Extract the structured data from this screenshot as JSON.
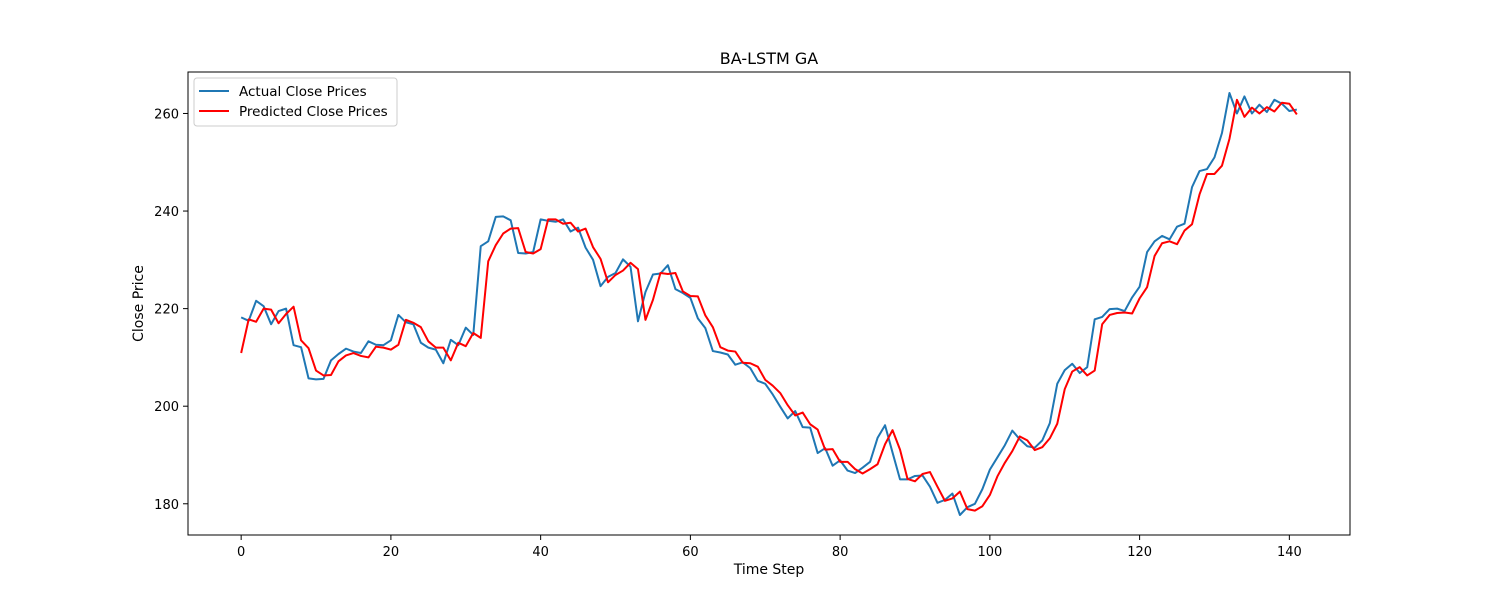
{
  "chart_data": {
    "type": "line",
    "title": "BA-LSTM GA",
    "xlabel": "Time Step",
    "ylabel": "Close Price",
    "xlim": [
      -7.1,
      148.1
    ],
    "ylim": [
      173.6,
      268.5
    ],
    "x_ticks": [
      0,
      20,
      40,
      60,
      80,
      100,
      120,
      140
    ],
    "y_ticks": [
      180,
      200,
      220,
      240,
      260
    ],
    "grid": false,
    "legend_position": "top-left",
    "series": [
      {
        "name": "Actual Close Prices",
        "color": "#1f77b4",
        "values": [
          218.2,
          217.5,
          221.6,
          220.5,
          216.8,
          219.5,
          220.0,
          212.5,
          212.1,
          205.7,
          205.5,
          205.6,
          209.4,
          210.7,
          211.8,
          211.2,
          210.9,
          213.3,
          212.6,
          212.5,
          213.5,
          218.7,
          217.2,
          216.8,
          213.0,
          212.0,
          211.6,
          208.8,
          213.6,
          212.5,
          216.1,
          214.6,
          232.8,
          233.8,
          238.8,
          238.9,
          238.1,
          231.4,
          231.3,
          231.6,
          238.3,
          238.0,
          237.8,
          238.3,
          235.8,
          236.6,
          232.5,
          230.0,
          224.6,
          226.5,
          227.3,
          230.1,
          228.6,
          217.4,
          223.4,
          227.0,
          227.2,
          228.9,
          224.0,
          223.2,
          222.2,
          218.0,
          216.0,
          211.3,
          211.0,
          210.6,
          208.5,
          209.0,
          207.8,
          205.2,
          204.6,
          202.4,
          199.9,
          197.5,
          199.0,
          195.7,
          195.6,
          190.4,
          191.4,
          187.8,
          188.9,
          186.8,
          186.3,
          187.4,
          188.6,
          193.5,
          196.1,
          190.5,
          185.0,
          185.0,
          185.7,
          185.8,
          183.5,
          180.2,
          180.8,
          182.1,
          177.7,
          179.3,
          180.0,
          183.0,
          187.0,
          189.5,
          192.0,
          195.0,
          193.2,
          191.8,
          191.5,
          193.0,
          196.5,
          204.6,
          207.4,
          208.7,
          206.8,
          208.0,
          217.8,
          218.3,
          219.9,
          220.0,
          219.5,
          222.3,
          224.5,
          231.6,
          233.8,
          234.9,
          234.2,
          236.8,
          237.4,
          244.9,
          248.2,
          248.6,
          251.0,
          256.0,
          264.2,
          260.0,
          263.5,
          260.0,
          261.8,
          260.3,
          262.8,
          262.0,
          260.5,
          260.8
        ]
      },
      {
        "name": "Predicted Close Prices",
        "color": "#ff0000",
        "values": [
          210.9,
          217.8,
          217.3,
          220.0,
          219.8,
          217.0,
          218.9,
          220.4,
          213.5,
          211.9,
          207.3,
          206.3,
          206.4,
          209.2,
          210.4,
          210.9,
          210.3,
          210.0,
          212.2,
          212.0,
          211.6,
          212.6,
          217.7,
          217.1,
          216.2,
          213.3,
          212.0,
          212.0,
          209.4,
          213.0,
          212.3,
          215.0,
          214.0,
          229.7,
          233.0,
          235.4,
          236.4,
          236.5,
          231.6,
          231.3,
          232.2,
          238.3,
          238.3,
          237.4,
          237.6,
          235.8,
          236.4,
          232.6,
          230.2,
          225.4,
          226.9,
          227.8,
          229.4,
          228.1,
          217.7,
          221.8,
          227.3,
          227.1,
          227.3,
          223.5,
          222.6,
          222.5,
          218.6,
          216.2,
          212.1,
          211.4,
          211.2,
          208.9,
          208.8,
          208.1,
          205.4,
          204.2,
          202.7,
          200.2,
          198.1,
          198.7,
          196.3,
          195.2,
          191.1,
          191.2,
          188.6,
          188.6,
          187.1,
          186.2,
          187.1,
          188.1,
          192.2,
          195.1,
          191.1,
          185.1,
          184.6,
          186.1,
          186.5,
          183.5,
          180.6,
          181.1,
          182.5,
          178.9,
          178.6,
          179.5,
          181.8,
          185.6,
          188.4,
          190.8,
          193.8,
          193.0,
          191.0,
          191.6,
          193.4,
          196.4,
          203.5,
          207.1,
          208.0,
          206.3,
          207.3,
          216.8,
          218.7,
          219.1,
          219.2,
          219.0,
          222.1,
          224.4,
          230.8,
          233.4,
          233.8,
          233.2,
          236.0,
          237.3,
          243.4,
          247.6,
          247.6,
          249.3,
          254.8,
          262.8,
          259.3,
          261.2,
          260.0,
          261.3,
          260.4,
          262.2,
          262.0,
          259.8
        ]
      }
    ]
  }
}
